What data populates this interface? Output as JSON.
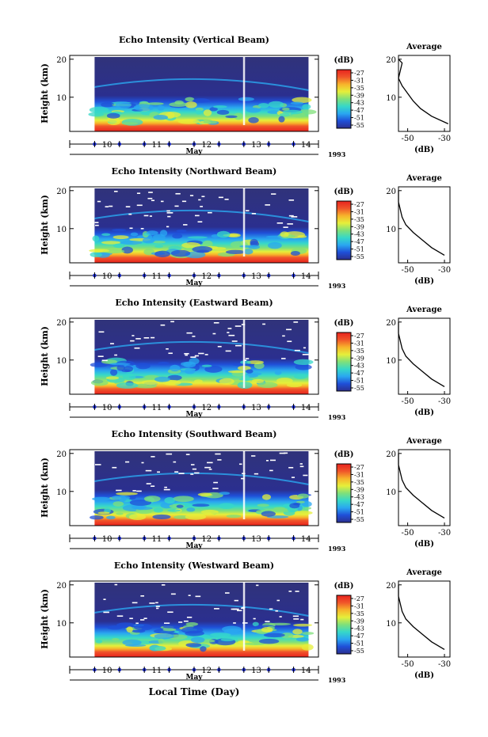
{
  "figure": {
    "xaxis_title": "Local Time (Day)",
    "month_label": "May",
    "year_label": "1993",
    "colorbar_unit": "(dB)",
    "colorbar_ticks": [
      "-27",
      "-31",
      "-35",
      "-39",
      "-43",
      "-47",
      "-51",
      "-55"
    ],
    "y_label": "Height (km)",
    "avg_title": "Average",
    "avg_xlabel": "(dB)"
  },
  "chart_data": [
    {
      "type": "heatmap",
      "title": "Echo Intensity (Vertical Beam)",
      "xlabel": "May",
      "ylabel": "Height (km)",
      "x_ticks": [
        "10",
        "11",
        "12",
        "13",
        "14"
      ],
      "y_ticks": [
        "10",
        "20"
      ],
      "xlim_days": [
        9.5,
        14.5
      ],
      "data_range_days": [
        10.0,
        14.3
      ],
      "ylim_km": [
        1,
        21
      ],
      "colorbar": {
        "unit": "dB",
        "min": -55,
        "max": -27
      },
      "average_profile": {
        "title": "Average",
        "xlabel": "(dB)",
        "x_ticks": [
          "-50",
          "-30"
        ],
        "y_ticks": [
          "10",
          "20"
        ],
        "height_km": [
          3,
          5,
          7,
          9,
          11,
          13,
          15,
          17,
          19,
          20
        ],
        "db": [
          -28,
          -37,
          -43,
          -47,
          -50,
          -53,
          -55,
          -54,
          -53,
          -55
        ]
      }
    },
    {
      "type": "heatmap",
      "title": "Echo Intensity (Northward Beam)",
      "xlabel": "May",
      "ylabel": "Height (km)",
      "x_ticks": [
        "10",
        "11",
        "12",
        "13",
        "14"
      ],
      "y_ticks": [
        "10",
        "20"
      ],
      "xlim_days": [
        9.5,
        14.5
      ],
      "data_range_days": [
        10.0,
        14.3
      ],
      "ylim_km": [
        1,
        21
      ],
      "colorbar": {
        "unit": "dB",
        "min": -55,
        "max": -27
      },
      "average_profile": {
        "title": "Average",
        "xlabel": "(dB)",
        "x_ticks": [
          "-50",
          "-30"
        ],
        "y_ticks": [
          "10",
          "20"
        ],
        "height_km": [
          3,
          5,
          7,
          9,
          11,
          13,
          15,
          17,
          19,
          20
        ],
        "db": [
          -30,
          -37,
          -42,
          -47,
          -51,
          -53,
          -54,
          -55,
          -55,
          -55
        ]
      }
    },
    {
      "type": "heatmap",
      "title": "Echo Intensity (Eastward Beam)",
      "xlabel": "May",
      "ylabel": "Height (km)",
      "x_ticks": [
        "10",
        "11",
        "12",
        "13",
        "14"
      ],
      "y_ticks": [
        "10",
        "20"
      ],
      "xlim_days": [
        9.5,
        14.5
      ],
      "data_range_days": [
        10.0,
        14.3
      ],
      "ylim_km": [
        1,
        21
      ],
      "colorbar": {
        "unit": "dB",
        "min": -55,
        "max": -27
      },
      "average_profile": {
        "title": "Average",
        "xlabel": "(dB)",
        "x_ticks": [
          "-50",
          "-30"
        ],
        "y_ticks": [
          "10",
          "20"
        ],
        "height_km": [
          3,
          5,
          7,
          9,
          11,
          13,
          15,
          17,
          19,
          20
        ],
        "db": [
          -30,
          -37,
          -42,
          -47,
          -51,
          -53,
          -54,
          -55,
          -55,
          -55
        ]
      }
    },
    {
      "type": "heatmap",
      "title": "Echo Intensity (Southward Beam)",
      "xlabel": "May",
      "ylabel": "Height (km)",
      "x_ticks": [
        "10",
        "11",
        "12",
        "13",
        "14"
      ],
      "y_ticks": [
        "10",
        "20"
      ],
      "xlim_days": [
        9.5,
        14.5
      ],
      "data_range_days": [
        10.0,
        14.3
      ],
      "ylim_km": [
        1,
        21
      ],
      "colorbar": {
        "unit": "dB",
        "min": -55,
        "max": -27
      },
      "average_profile": {
        "title": "Average",
        "xlabel": "(dB)",
        "x_ticks": [
          "-50",
          "-30"
        ],
        "y_ticks": [
          "10",
          "20"
        ],
        "height_km": [
          3,
          5,
          7,
          9,
          11,
          13,
          15,
          17,
          19,
          20
        ],
        "db": [
          -30,
          -37,
          -42,
          -47,
          -51,
          -53,
          -54,
          -55,
          -55,
          -55
        ]
      }
    },
    {
      "type": "heatmap",
      "title": "Echo Intensity (Westward Beam)",
      "xlabel": "May",
      "ylabel": "Height (km)",
      "x_ticks": [
        "10",
        "11",
        "12",
        "13",
        "14"
      ],
      "y_ticks": [
        "10",
        "20"
      ],
      "xlim_days": [
        9.5,
        14.5
      ],
      "data_range_days": [
        10.0,
        14.3
      ],
      "ylim_km": [
        1,
        21
      ],
      "colorbar": {
        "unit": "dB",
        "min": -55,
        "max": -27
      },
      "average_profile": {
        "title": "Average",
        "xlabel": "(dB)",
        "x_ticks": [
          "-50",
          "-30"
        ],
        "y_ticks": [
          "10",
          "20"
        ],
        "height_km": [
          3,
          5,
          7,
          9,
          11,
          13,
          15,
          17,
          19,
          20
        ],
        "db": [
          -30,
          -37,
          -42,
          -47,
          -51,
          -53,
          -54,
          -55,
          -55,
          -55
        ]
      }
    }
  ],
  "colors": {
    "colormap": [
      "#2b2f8f",
      "#1f4fd8",
      "#2aa7f0",
      "#36d8c8",
      "#7fe07a",
      "#e6ef3a",
      "#f7b32b",
      "#f0552a",
      "#e8231e"
    ],
    "background_dark": "#30337a",
    "tick_marker": "#1a2ad0"
  }
}
